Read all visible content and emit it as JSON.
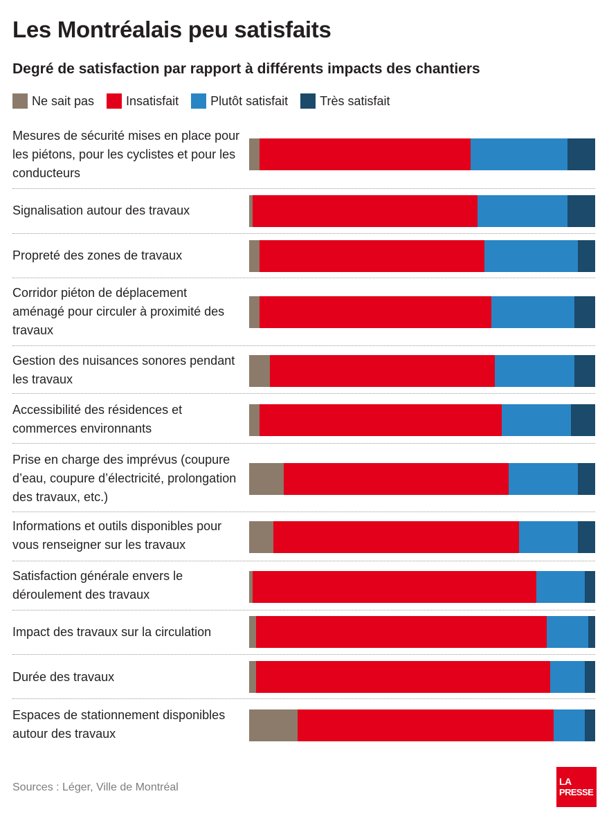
{
  "title": "Les Montréalais peu satisfaits",
  "subtitle": "Degré de satisfaction par rapport à différents impacts des chantiers",
  "legend": [
    {
      "label": "Ne sait pas",
      "color": "#8c7b6b"
    },
    {
      "label": "Insatisfait",
      "color": "#e2001a"
    },
    {
      "label": "Plutôt satisfait",
      "color": "#2a85c4"
    },
    {
      "label": "Très satisfait",
      "color": "#1b4a6b"
    }
  ],
  "source": "Sources : Léger, Ville de Montréal",
  "logo": {
    "line1": "LA",
    "line2": "PRESSE"
  },
  "chart_data": {
    "type": "bar",
    "orientation": "horizontal",
    "stacked": true,
    "title": "Les Montréalais peu satisfaits",
    "subtitle": "Degré de satisfaction par rapport à différents impacts des chantiers",
    "xlim": [
      0,
      100
    ],
    "categories": [
      "Mesures de sécurité mises en place pour les piétons, pour les cyclistes et pour les conducteurs",
      "Signalisation autour des travaux",
      "Propreté des zones de travaux",
      "Corridor piéton de déplacement aménagé pour circuler à proximité des travaux",
      "Gestion des nuisances sonores pendant les travaux",
      "Accessibilité des résidences et commerces environnants",
      "Prise en charge des imprévus (coupure d’eau, coupure d’électricité, prolongation des travaux, etc.)",
      "Informations et outils disponibles pour vous renseigner sur les travaux",
      "Satisfaction générale envers le déroulement des travaux",
      "Impact des travaux sur la circulation",
      "Durée des travaux",
      "Espaces de stationnement disponibles autour des travaux"
    ],
    "series": [
      {
        "name": "Ne sait pas",
        "color": "#8c7b6b",
        "values": [
          3,
          1,
          3,
          3,
          6,
          3,
          10,
          7,
          1,
          2,
          2,
          14
        ]
      },
      {
        "name": "Insatisfait",
        "color": "#e2001a",
        "values": [
          61,
          65,
          65,
          67,
          65,
          70,
          65,
          71,
          82,
          84,
          85,
          74
        ]
      },
      {
        "name": "Plutôt satisfait",
        "color": "#2a85c4",
        "values": [
          28,
          26,
          27,
          24,
          23,
          20,
          20,
          17,
          14,
          12,
          10,
          9
        ]
      },
      {
        "name": "Très satisfait",
        "color": "#1b4a6b",
        "values": [
          8,
          8,
          5,
          6,
          6,
          7,
          5,
          5,
          3,
          2,
          3,
          3
        ]
      }
    ],
    "legend_position": "top-left"
  }
}
